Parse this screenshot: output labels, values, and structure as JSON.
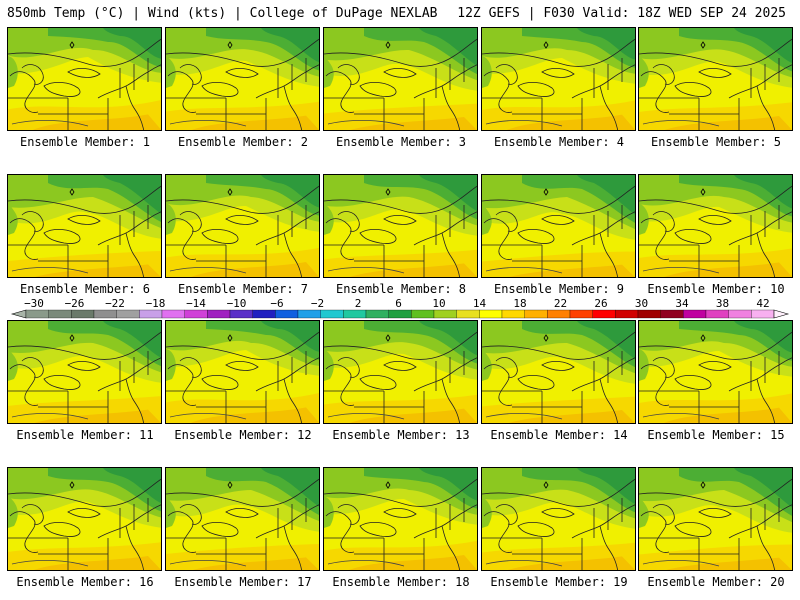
{
  "header": {
    "left": "850mb Temp (°C) | Wind (kts) | College of DuPage NEXLAB",
    "right": "12Z GEFS | F030 Valid: 18Z WED SEP 24 2025"
  },
  "panels": [
    {
      "label": "Ensemble Member: 1"
    },
    {
      "label": "Ensemble Member: 2"
    },
    {
      "label": "Ensemble Member: 3"
    },
    {
      "label": "Ensemble Member: 4"
    },
    {
      "label": "Ensemble Member: 5"
    },
    {
      "label": "Ensemble Member: 6"
    },
    {
      "label": "Ensemble Member: 7"
    },
    {
      "label": "Ensemble Member: 8"
    },
    {
      "label": "Ensemble Member: 9"
    },
    {
      "label": "Ensemble Member: 10"
    },
    {
      "label": "Ensemble Member: 11"
    },
    {
      "label": "Ensemble Member: 12"
    },
    {
      "label": "Ensemble Member: 13"
    },
    {
      "label": "Ensemble Member: 14"
    },
    {
      "label": "Ensemble Member: 15"
    },
    {
      "label": "Ensemble Member: 16"
    },
    {
      "label": "Ensemble Member: 17"
    },
    {
      "label": "Ensemble Member: 18"
    },
    {
      "label": "Ensemble Member: 19"
    },
    {
      "label": "Ensemble Member: 20"
    }
  ],
  "colorbar": {
    "tick_labels": [
      "-30",
      "-26",
      "-22",
      "-18",
      "-14",
      "-10",
      "-6",
      "-2",
      "2",
      "6",
      "10",
      "14",
      "18",
      "22",
      "26",
      "30",
      "34",
      "38",
      "42"
    ],
    "colors": [
      "#8a9a8a",
      "#7a8a7a",
      "#6a7a6a",
      "#8f8f8f",
      "#a0a0a0",
      "#c8a0e8",
      "#e070f0",
      "#d040d8",
      "#a020c0",
      "#5a30c8",
      "#2020c0",
      "#1060e0",
      "#20a0e8",
      "#20c8d0",
      "#20c8a0",
      "#30b060",
      "#20a040",
      "#60c020",
      "#a0d020",
      "#e8e020",
      "#ffff00",
      "#ffd800",
      "#ffb000",
      "#ff8000",
      "#ff4000",
      "#ff0000",
      "#d00000",
      "#a00000",
      "#900020",
      "#c000a0",
      "#e040c0",
      "#f080e0",
      "#f8b0f0"
    ]
  },
  "map_palette": {
    "dark_green": "#2e9a3c",
    "green": "#4cae34",
    "light_green": "#8cc820",
    "yellow_green": "#c8e018",
    "yellow": "#f0f000",
    "gold": "#f6d800",
    "orange": "#f4b800"
  }
}
